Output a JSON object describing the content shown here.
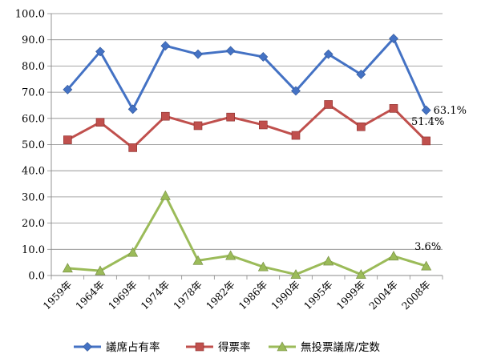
{
  "chart_data": {
    "type": "line",
    "categories": [
      "1959年",
      "1964年",
      "1969年",
      "1974年",
      "1978年",
      "1982年",
      "1986年",
      "1990年",
      "1995年",
      "1999年",
      "2004年",
      "2008年"
    ],
    "ylim": [
      0,
      100
    ],
    "yticks": [
      "0.0",
      "10.0",
      "20.0",
      "30.0",
      "40.0",
      "50.0",
      "60.0",
      "70.0",
      "80.0",
      "90.0",
      "100.0"
    ],
    "grid": true,
    "legend_position": "bottom",
    "series": [
      {
        "name": "議席占有率",
        "color": "#4472C4",
        "marker": "diamond",
        "values": [
          71.0,
          85.5,
          63.5,
          87.7,
          84.5,
          85.8,
          83.5,
          70.5,
          84.5,
          76.8,
          90.5,
          63.1
        ]
      },
      {
        "name": "得票率",
        "color": "#C0504D",
        "marker": "square",
        "values": [
          51.8,
          58.5,
          48.8,
          60.8,
          57.2,
          60.5,
          57.5,
          53.5,
          65.3,
          56.8,
          63.8,
          51.4
        ]
      },
      {
        "name": "無投票議席/定数",
        "color": "#9BBB59",
        "marker": "triangle",
        "values": [
          2.8,
          1.8,
          8.8,
          30.5,
          5.7,
          7.6,
          3.3,
          0.4,
          5.5,
          0.4,
          7.4,
          3.6
        ]
      }
    ],
    "annotations": [
      {
        "series": 0,
        "index": 11,
        "text": "63.1%"
      },
      {
        "series": 1,
        "index": 11,
        "text": "51.4%"
      },
      {
        "series": 2,
        "index": 11,
        "text": "3.6%"
      }
    ]
  }
}
